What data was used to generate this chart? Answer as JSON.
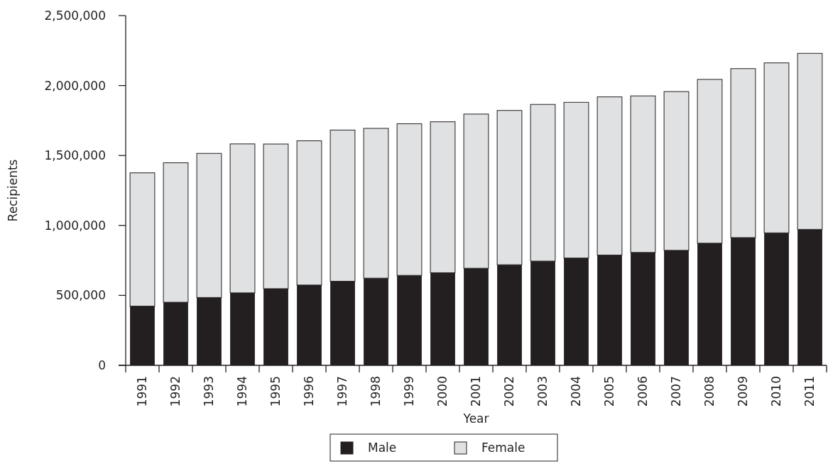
{
  "chart_data": {
    "type": "bar",
    "stacked": true,
    "xlabel": "Year",
    "ylabel": "Recipients",
    "categories": [
      "1991",
      "1992",
      "1993",
      "1994",
      "1995",
      "1996",
      "1997",
      "1998",
      "1999",
      "2000",
      "2001",
      "2002",
      "2003",
      "2004",
      "2005",
      "2006",
      "2007",
      "2008",
      "2009",
      "2010",
      "2011"
    ],
    "series": [
      {
        "name": "Male",
        "color": "#231f20",
        "values": [
          423000,
          451000,
          485000,
          518000,
          548000,
          574000,
          601000,
          623000,
          643000,
          662000,
          694000,
          719000,
          745000,
          767000,
          788000,
          807000,
          822000,
          873000,
          913000,
          947000,
          972000
        ]
      },
      {
        "name": "Female",
        "color": "#e0e1e3",
        "values": [
          953000,
          997000,
          1030000,
          1065000,
          1034000,
          1031000,
          1081000,
          1071000,
          1084000,
          1079000,
          1102000,
          1103000,
          1120000,
          1113000,
          1131000,
          1119000,
          1135000,
          1171000,
          1208000,
          1215000,
          1258000
        ]
      }
    ],
    "ylim": [
      0,
      2500000
    ],
    "yticks": [
      {
        "value": 0,
        "label": "0"
      },
      {
        "value": 500000,
        "label": "500,000"
      },
      {
        "value": 1000000,
        "label": "1,000,000"
      },
      {
        "value": 1500000,
        "label": "1,500,000"
      },
      {
        "value": 2000000,
        "label": "2,000,000"
      },
      {
        "value": 2500000,
        "label": "2,500,000"
      }
    ],
    "grid": false,
    "legend": "bottom"
  }
}
